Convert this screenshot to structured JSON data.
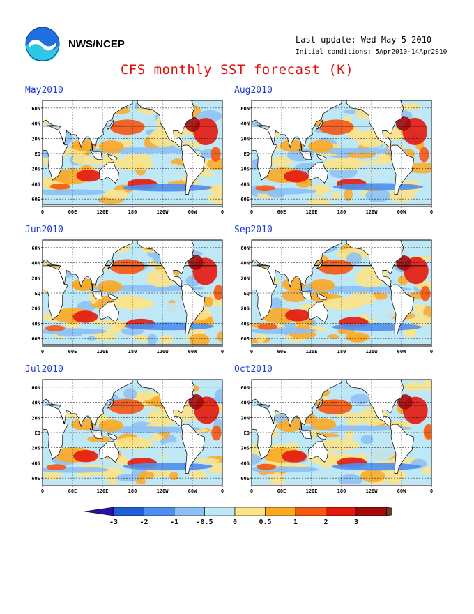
{
  "header": {
    "agency": "NWS/NCEP",
    "last_update": "Last update: Wed May 5 2010",
    "initial_conditions": "Initial conditions: 5Apr2010-14Apr2010",
    "title": "CFS monthly SST forecast (K)",
    "logo": "noaa-logo"
  },
  "axes": {
    "lat_labels": [
      "60N",
      "40N",
      "20N",
      "EQ",
      "20S",
      "40S",
      "60S"
    ],
    "lon_labels": [
      "0",
      "60E",
      "120E",
      "180",
      "120W",
      "60W",
      "0"
    ]
  },
  "panels": [
    {
      "month": "May2010",
      "seed": 1
    },
    {
      "month": "Aug2010",
      "seed": 2
    },
    {
      "month": "Jun2010",
      "seed": 3
    },
    {
      "month": "Sep2010",
      "seed": 4
    },
    {
      "month": "Jul2010",
      "seed": 5
    },
    {
      "month": "Oct2010",
      "seed": 6
    }
  ],
  "colorbar": {
    "ticks": [
      "-3",
      "-2",
      "-1",
      "-0.5",
      "0",
      "0.5",
      "1",
      "2",
      "3"
    ],
    "colors": [
      "#2b0fa8",
      "#1f5fd6",
      "#4e8ef0",
      "#8cc0f5",
      "#bfe8f7",
      "#fbe388",
      "#fca823",
      "#f65712",
      "#e3190f",
      "#a30b0b",
      "#6a3a2e"
    ],
    "land_color": "#ffffff"
  }
}
